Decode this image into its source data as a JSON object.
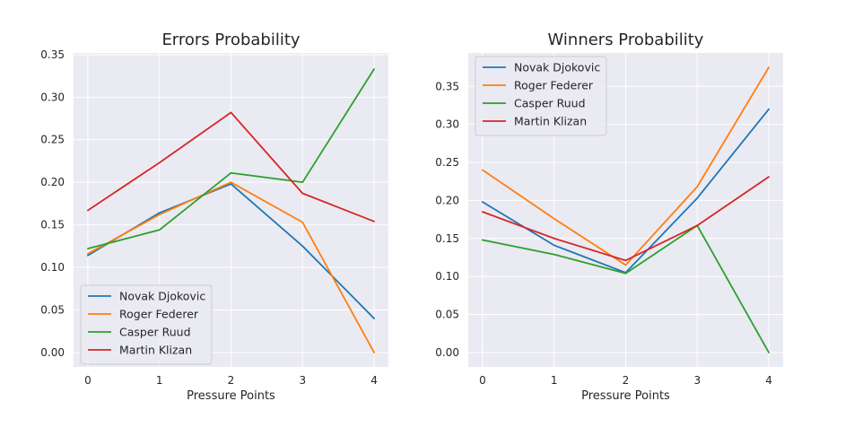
{
  "chart_data": [
    {
      "type": "line",
      "title": "Errors Probability",
      "xlabel": "Pressure Points",
      "ylabel": "",
      "x": [
        0,
        1,
        2,
        3,
        4
      ],
      "xlim": [
        -0.2,
        4.2
      ],
      "ylim": [
        -0.017,
        0.352
      ],
      "xticks": [
        "0",
        "1",
        "2",
        "3",
        "4"
      ],
      "yticks": [
        "0.00",
        "0.05",
        "0.10",
        "0.15",
        "0.20",
        "0.25",
        "0.30",
        "0.35"
      ],
      "grid": true,
      "legend_position": "lower-left",
      "series": [
        {
          "name": "Novak Djokovic",
          "color": "#1f77b4",
          "values": [
            0.114,
            0.164,
            0.198,
            0.125,
            0.04
          ]
        },
        {
          "name": "Roger Federer",
          "color": "#ff7f0e",
          "values": [
            0.116,
            0.162,
            0.2,
            0.153,
            0.0
          ]
        },
        {
          "name": "Casper Ruud",
          "color": "#2ca02c",
          "values": [
            0.122,
            0.144,
            0.211,
            0.2,
            0.333
          ]
        },
        {
          "name": "Martin Klizan",
          "color": "#d62728",
          "values": [
            0.167,
            0.223,
            0.282,
            0.187,
            0.154
          ]
        }
      ]
    },
    {
      "type": "line",
      "title": "Winners Probability",
      "xlabel": "Pressure Points",
      "ylabel": "",
      "x": [
        0,
        1,
        2,
        3,
        4
      ],
      "xlim": [
        -0.2,
        4.2
      ],
      "ylim": [
        -0.019,
        0.394
      ],
      "xticks": [
        "0",
        "1",
        "2",
        "3",
        "4"
      ],
      "yticks": [
        "0.00",
        "0.05",
        "0.10",
        "0.15",
        "0.20",
        "0.25",
        "0.30",
        "0.35"
      ],
      "grid": true,
      "legend_position": "upper-left",
      "series": [
        {
          "name": "Novak Djokovic",
          "color": "#1f77b4",
          "values": [
            0.198,
            0.141,
            0.105,
            0.203,
            0.32
          ]
        },
        {
          "name": "Roger Federer",
          "color": "#ff7f0e",
          "values": [
            0.24,
            0.176,
            0.115,
            0.218,
            0.375
          ]
        },
        {
          "name": "Casper Ruud",
          "color": "#2ca02c",
          "values": [
            0.148,
            0.129,
            0.104,
            0.167,
            0.0
          ]
        },
        {
          "name": "Martin Klizan",
          "color": "#d62728",
          "values": [
            0.185,
            0.15,
            0.121,
            0.167,
            0.231
          ]
        }
      ]
    }
  ],
  "style": {
    "axes_background": "#eaeaf2",
    "grid_color": "#ffffff",
    "legend_background": "#eaeaf2",
    "legend_border": "#cccccc"
  }
}
